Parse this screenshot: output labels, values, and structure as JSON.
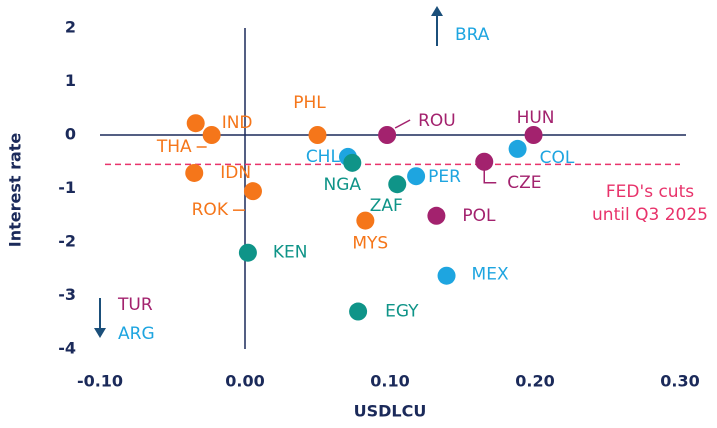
{
  "chart_data": {
    "type": "scatter",
    "x_label": "USDLCU",
    "y_label": "Interest rate",
    "xlim": [
      -0.1,
      0.3
    ],
    "xticks": [
      {
        "value": -0.1,
        "label": "-0.10"
      },
      {
        "value": 0,
        "label": "0.00"
      },
      {
        "value": 0.1,
        "label": "0.10"
      },
      {
        "value": 0.2,
        "label": "0.20"
      },
      {
        "value": 0.3,
        "label": "0.30"
      }
    ],
    "ylim": [
      -4,
      2
    ],
    "yticks": [
      2,
      1,
      0,
      -1,
      -2,
      -3,
      -4
    ],
    "series": [
      {
        "color": "#f5761a",
        "labels": [
          "IND",
          "THA",
          "IDN",
          "ROK",
          "PHL",
          "MYS"
        ],
        "x": [
          -0.034,
          -0.023,
          -0.035,
          0.0055,
          0.05,
          0.083
        ],
        "values": [
          0.22,
          0,
          -0.71,
          -1.05,
          0,
          -1.6
        ]
      },
      {
        "color": "#1ea5e0",
        "labels": [
          "CHL",
          "PER",
          "MEX",
          "COL"
        ],
        "x": [
          0.071,
          0.118,
          0.139,
          0.188
        ],
        "values": [
          -0.41,
          -0.77,
          -2.63,
          -0.26
        ]
      },
      {
        "color": "#0f9488",
        "labels": [
          "NGA",
          "ZAF",
          "KEN",
          "EGY"
        ],
        "x": [
          0.074,
          0.105,
          0.002,
          0.078
        ],
        "values": [
          -0.52,
          -0.92,
          -2.2,
          -3.3
        ]
      },
      {
        "color": "#a3226e",
        "labels": [
          "ROU",
          "HUN",
          "CZE",
          "POL"
        ],
        "x": [
          0.098,
          0.199,
          0.165,
          0.132
        ],
        "values": [
          0,
          0,
          -0.5,
          -1.51
        ]
      }
    ],
    "reference_line": {
      "value": -0.55,
      "color": "#e8336b",
      "label": [
        "FED's cuts",
        "until Q3 2025"
      ]
    },
    "off_chart": [
      {
        "label": "BRA",
        "color": "#1ea5e0"
      },
      {
        "label": "TUR",
        "color": "#a3226e"
      },
      {
        "label": "ARG",
        "color": "#1ea5e0"
      }
    ]
  }
}
